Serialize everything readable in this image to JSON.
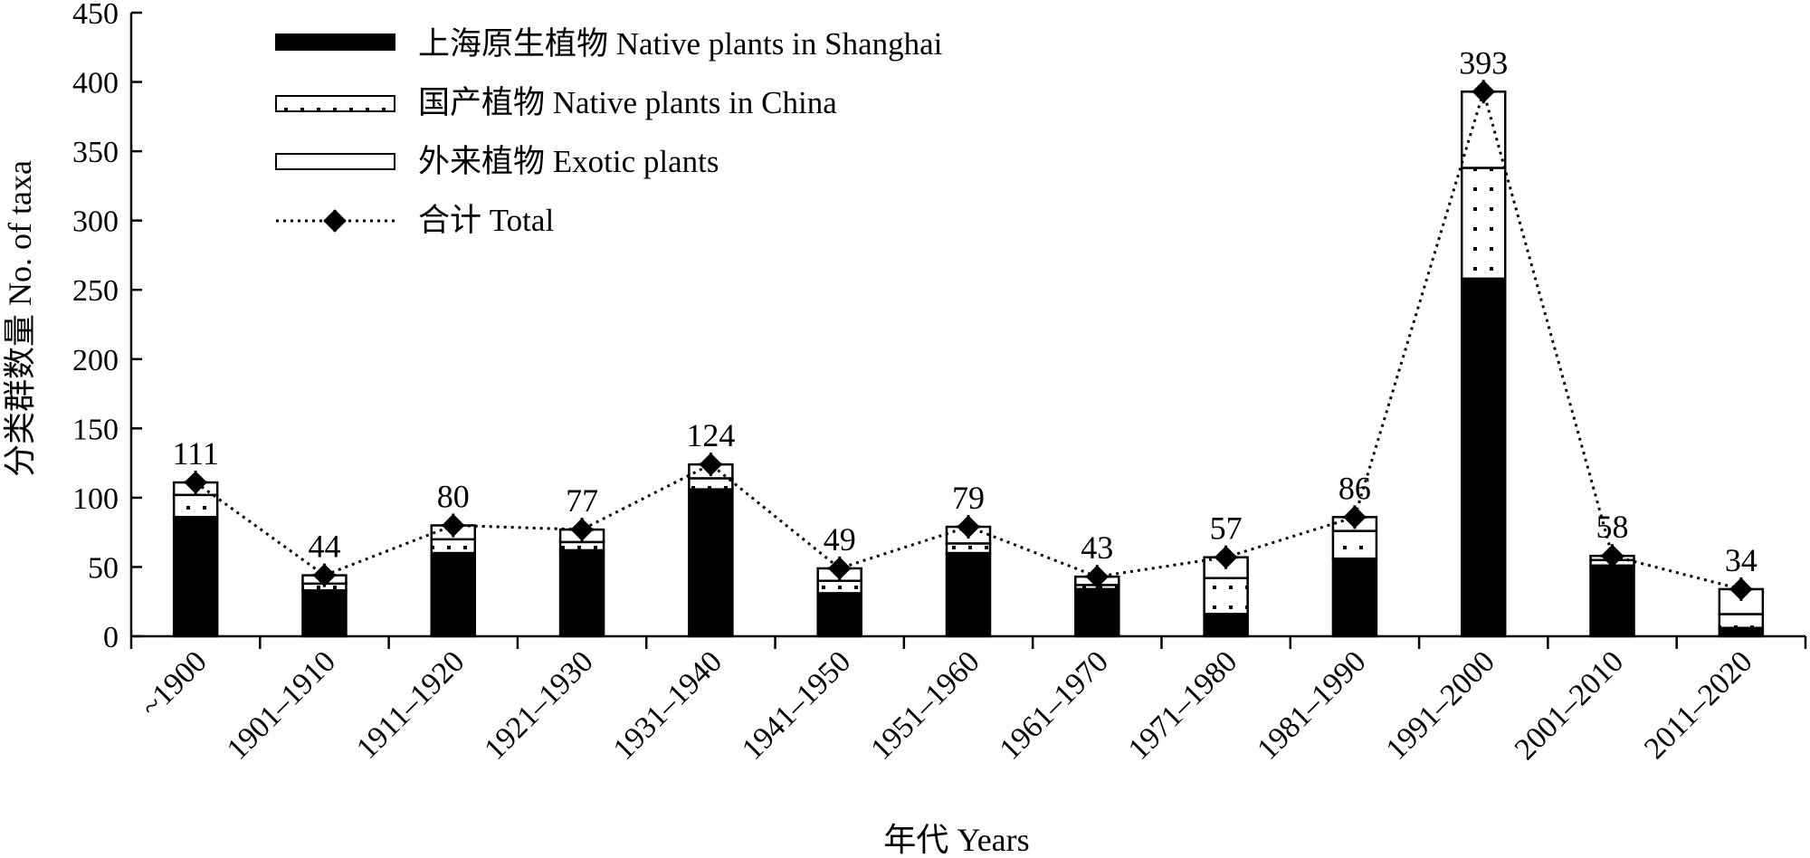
{
  "chart_data": {
    "type": "bar",
    "stacked": true,
    "categories": [
      "~1900",
      "1901–1910",
      "1911–1920",
      "1921–1930",
      "1931–1940",
      "1941–1950",
      "1951–1960",
      "1961–1970",
      "1971–1980",
      "1981–1990",
      "1991–2000",
      "2001–2010",
      "2011–2020"
    ],
    "series": [
      {
        "name": "上海原生植物 Native plants in Shanghai",
        "values": [
          86,
          33,
          60,
          62,
          106,
          31,
          60,
          34,
          16,
          56,
          258,
          51,
          6
        ],
        "fill": "#000000",
        "pattern": "solid"
      },
      {
        "name": "国产植物 Native plants in China",
        "values": [
          16,
          5,
          10,
          6,
          8,
          9,
          7,
          3,
          26,
          20,
          80,
          4,
          10
        ],
        "fill": "#ffffff",
        "pattern": "dots"
      },
      {
        "name": "外来植物 Exotic plants",
        "values": [
          9,
          6,
          10,
          9,
          10,
          9,
          12,
          6,
          15,
          10,
          55,
          3,
          18
        ],
        "fill": "#ffffff",
        "pattern": "empty"
      }
    ],
    "line": {
      "name": "合计 Total",
      "values": [
        111,
        44,
        80,
        77,
        124,
        49,
        79,
        43,
        57,
        86,
        393,
        58,
        34
      ],
      "style": "dotted",
      "marker": "diamond-cross"
    },
    "data_labels": [
      "111",
      "44",
      "80",
      "77",
      "124",
      "49",
      "79",
      "43",
      "57",
      "86",
      "393",
      "58",
      "34"
    ],
    "ylabel": "分类群数量 No. of taxa",
    "xlabel": "年代 Years",
    "ylim": [
      0,
      450
    ],
    "yticks": [
      0,
      50,
      100,
      150,
      200,
      250,
      300,
      350,
      400,
      450
    ],
    "grid": false,
    "legend_position": "top-left",
    "colors": {
      "ink": "#000000",
      "background": "#ffffff"
    }
  }
}
